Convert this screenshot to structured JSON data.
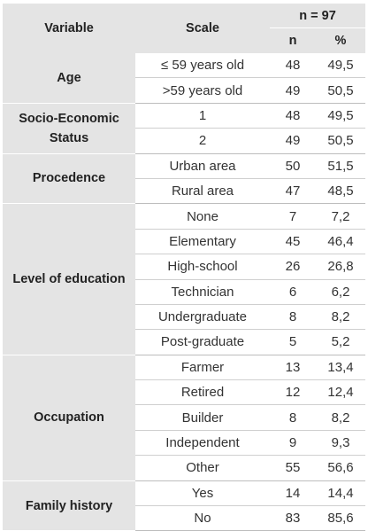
{
  "header": {
    "variable": "Variable",
    "scale": "Scale",
    "total": "n = 97",
    "n": "n",
    "pct": "%"
  },
  "groups": [
    {
      "variable": "Age",
      "rows": [
        {
          "scale": "≤ 59 years old",
          "n": "48",
          "pct": "49,5"
        },
        {
          "scale": ">59 years old",
          "n": "49",
          "pct": "50,5"
        }
      ]
    },
    {
      "variable": "Socio-Economic Status",
      "rows": [
        {
          "scale": "1",
          "n": "48",
          "pct": "49,5"
        },
        {
          "scale": "2",
          "n": "49",
          "pct": "50,5"
        }
      ]
    },
    {
      "variable": "Procedence",
      "rows": [
        {
          "scale": "Urban area",
          "n": "50",
          "pct": "51,5"
        },
        {
          "scale": "Rural area",
          "n": "47",
          "pct": "48,5"
        }
      ]
    },
    {
      "variable": "Level of education",
      "rows": [
        {
          "scale": "None",
          "n": "7",
          "pct": "7,2"
        },
        {
          "scale": "Elementary",
          "n": "45",
          "pct": "46,4"
        },
        {
          "scale": "High-school",
          "n": "26",
          "pct": "26,8"
        },
        {
          "scale": "Technician",
          "n": "6",
          "pct": "6,2"
        },
        {
          "scale": "Undergraduate",
          "n": "8",
          "pct": "8,2"
        },
        {
          "scale": "Post-graduate",
          "n": "5",
          "pct": "5,2"
        }
      ]
    },
    {
      "variable": "Occupation",
      "rows": [
        {
          "scale": "Farmer",
          "n": "13",
          "pct": "13,4"
        },
        {
          "scale": "Retired",
          "n": "12",
          "pct": "12,4"
        },
        {
          "scale": "Builder",
          "n": "8",
          "pct": "8,2"
        },
        {
          "scale": "Independent",
          "n": "9",
          "pct": "9,3"
        },
        {
          "scale": "Other",
          "n": "55",
          "pct": "56,6"
        }
      ]
    },
    {
      "variable": "Family history",
      "rows": [
        {
          "scale": "Yes",
          "n": "14",
          "pct": "14,4"
        },
        {
          "scale": "No",
          "n": "83",
          "pct": "85,6"
        }
      ]
    }
  ]
}
